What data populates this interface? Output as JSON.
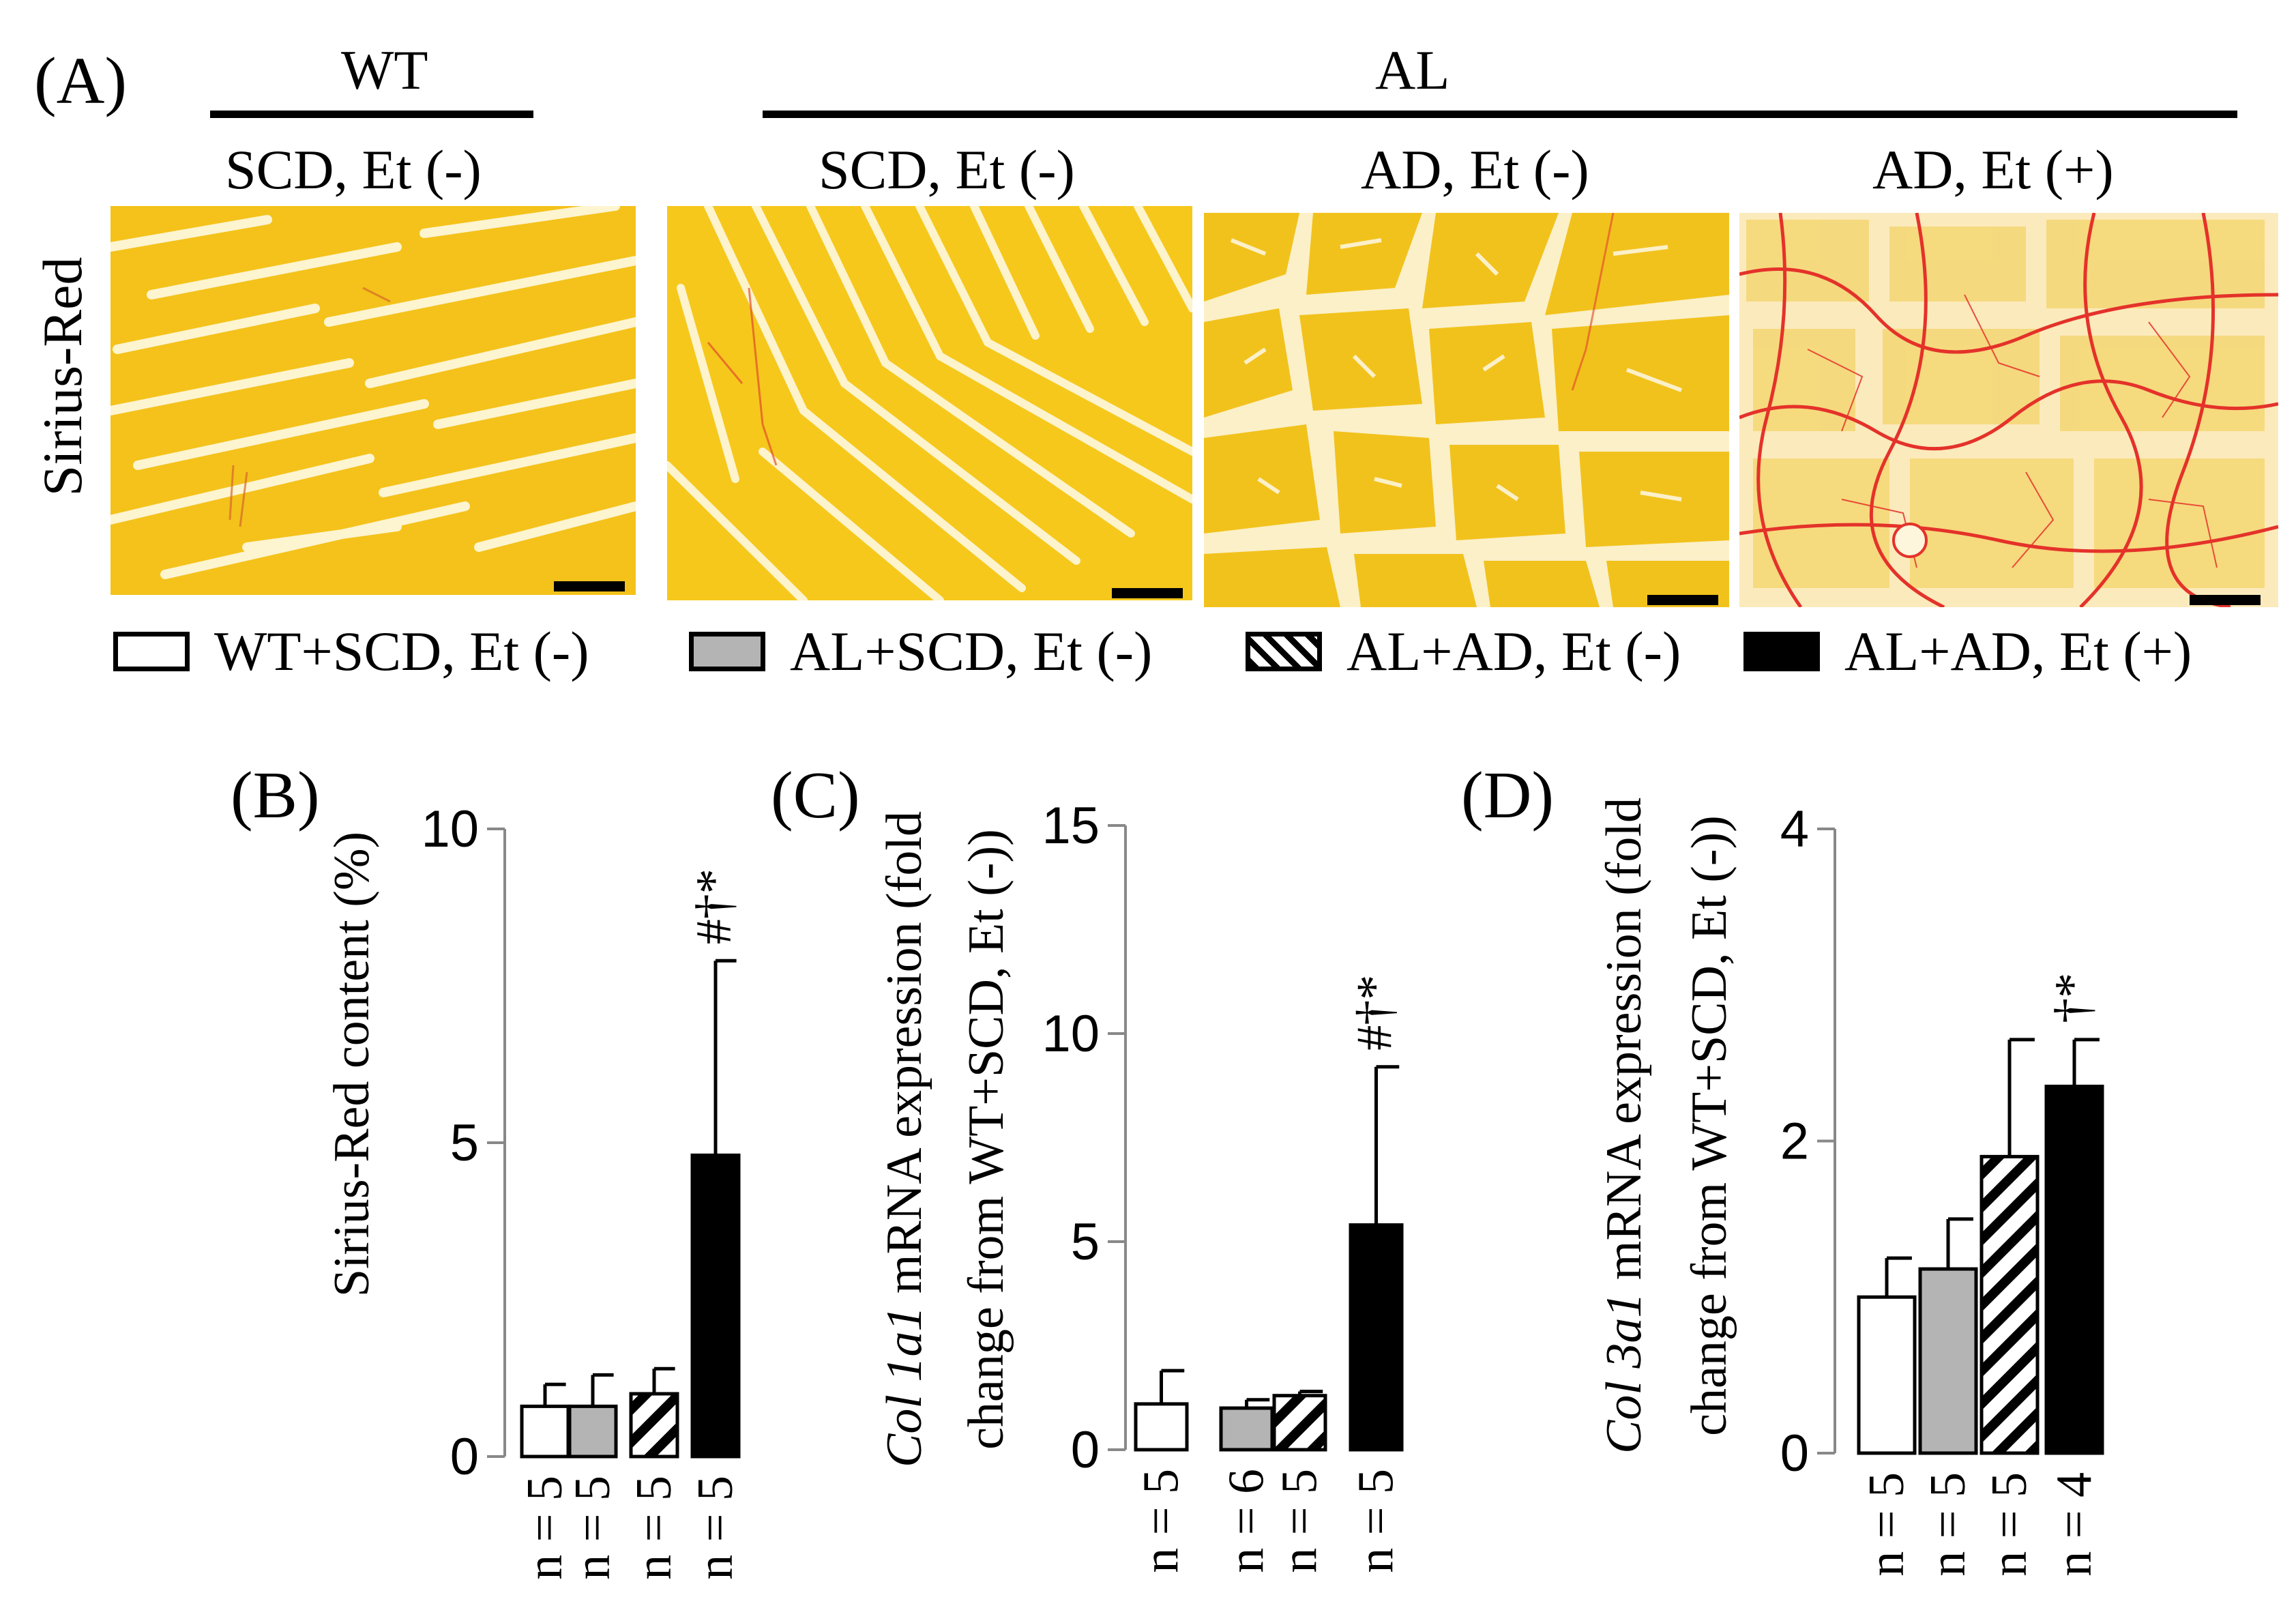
{
  "figure": {
    "panel_a": {
      "label": "(A)",
      "groups": [
        {
          "name": "WT",
          "conditions": [
            "SCD, Et (-)"
          ]
        },
        {
          "name": "AL",
          "conditions": [
            "SCD, Et (-)",
            "AD, Et (-)",
            "AD, Et (+)"
          ]
        }
      ],
      "stain_label": "Sirius-Red",
      "images": [
        {
          "caption": "WT SCD, Et (-) Sirius-Red micrograph"
        },
        {
          "caption": "AL SCD, Et (-) Sirius-Red micrograph"
        },
        {
          "caption": "AL AD, Et (-) Sirius-Red micrograph"
        },
        {
          "caption": "AL AD, Et (+) Sirius-Red micrograph"
        }
      ]
    },
    "legend": [
      {
        "label": "WT+SCD, Et (-)",
        "fill": "white"
      },
      {
        "label": "AL+SCD, Et (-)",
        "fill": "gray"
      },
      {
        "label": "AL+AD, Et (-)",
        "fill": "hatch"
      },
      {
        "label": "AL+AD, Et (+)",
        "fill": "black"
      }
    ],
    "colors": {
      "gray": "#b4b4b4",
      "black": "#000000",
      "white": "#ffffff",
      "stain_yellow": "#f2c41c",
      "stain_red": "#e0322a",
      "tissue_bg": "#fbf0c8"
    }
  },
  "chart_data": [
    {
      "panel": "(B)",
      "type": "bar",
      "ylabel": "Sirius-Red content (%)",
      "ylabel_italic_prefix": "",
      "ylabel_line2": "",
      "ylim": [
        0,
        10
      ],
      "yticks": [
        0,
        5,
        10
      ],
      "categories": [
        "n = 5",
        "n = 5",
        "n = 5",
        "n = 5"
      ],
      "values": [
        0.8,
        0.8,
        1.0,
        4.8
      ],
      "errors": [
        0.35,
        0.5,
        0.4,
        3.1
      ],
      "fills": [
        "white",
        "gray",
        "hatch",
        "black"
      ],
      "annotations": [
        "",
        "",
        "",
        "#†*"
      ]
    },
    {
      "panel": "(C)",
      "type": "bar",
      "ylabel": "mRNA expression (fold",
      "ylabel_italic_prefix": "Col 1a1",
      "ylabel_line2": "change from WT+SCD, Et (-))",
      "ylim": [
        0,
        15
      ],
      "yticks": [
        0,
        5,
        10,
        15
      ],
      "categories": [
        "n = 5",
        "n = 6",
        "n = 5",
        "n = 5"
      ],
      "values": [
        1.1,
        1.0,
        1.3,
        5.4
      ],
      "errors": [
        0.8,
        0.2,
        0.1,
        3.8
      ],
      "fills": [
        "white",
        "gray",
        "hatch",
        "black"
      ],
      "annotations": [
        "",
        "",
        "",
        "#†*"
      ]
    },
    {
      "panel": "(D)",
      "type": "bar",
      "ylabel": "mRNA expression (fold",
      "ylabel_italic_prefix": "Col 3a1",
      "ylabel_line2": "change from WT+SCD, Et (-))",
      "ylim": [
        0,
        4
      ],
      "yticks": [
        0,
        2,
        4
      ],
      "categories": [
        "n = 5",
        "n = 5",
        "n = 5",
        "n = 4"
      ],
      "values": [
        1.0,
        1.18,
        1.9,
        2.35
      ],
      "errors": [
        0.25,
        0.32,
        0.75,
        0.3
      ],
      "fills": [
        "white",
        "gray",
        "hatch",
        "black"
      ],
      "annotations": [
        "",
        "",
        "",
        "†*"
      ]
    }
  ]
}
